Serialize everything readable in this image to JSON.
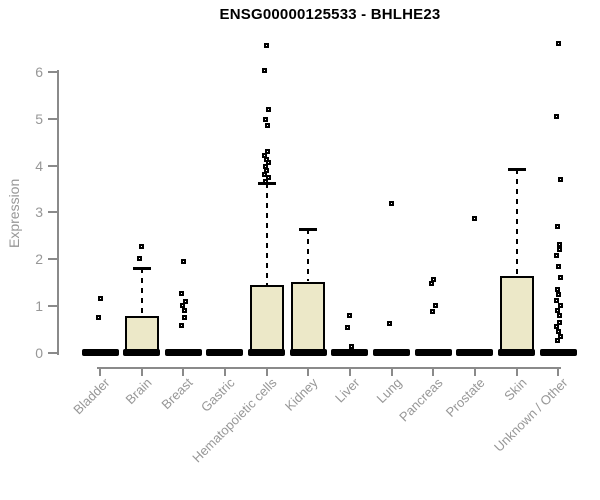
{
  "chart_data": {
    "type": "boxplot",
    "title": "ENSG00000125533 - BHLHE23",
    "xlabel": "",
    "ylabel": "Expression",
    "yticks": [
      0,
      1,
      2,
      3,
      4,
      5,
      6
    ],
    "ylim": [
      0,
      6.7
    ],
    "grid": false,
    "legend": "none",
    "colors": {
      "box_fill": "#ece8c8",
      "box_border": "#000000",
      "axis_line": "#8a8a8a",
      "tick_label": "#979797",
      "title_text": "#000000"
    },
    "categories": [
      "Bladder",
      "Brain",
      "Breast",
      "Gastric",
      "Hematopoietic cells",
      "Kidney",
      "Liver",
      "Lung",
      "Pancreas",
      "Prostate",
      "Skin",
      "Unknown / Other"
    ],
    "series": [
      {
        "category": "Bladder",
        "median": 0,
        "q1": 0,
        "q3": 0,
        "whisker_low": 0,
        "whisker_high": 0,
        "outliers": [
          1.15,
          0.75
        ]
      },
      {
        "category": "Brain",
        "median": 0,
        "q1": 0,
        "q3": 0.78,
        "whisker_low": 0,
        "whisker_high": 1.8,
        "outliers": [
          2.28,
          2.02
        ]
      },
      {
        "category": "Breast",
        "median": 0,
        "q1": 0,
        "q3": 0,
        "whisker_low": 0,
        "whisker_high": 0,
        "outliers": [
          1.95,
          1.27,
          1.1,
          1.0,
          0.9,
          0.75,
          0.58
        ]
      },
      {
        "category": "Gastric",
        "median": 0,
        "q1": 0,
        "q3": 0,
        "whisker_low": 0,
        "whisker_high": 0,
        "outliers": []
      },
      {
        "category": "Hematopoietic cells",
        "median": 0,
        "q1": 0,
        "q3": 1.45,
        "whisker_low": 0,
        "whisker_high": 3.62,
        "outliers": [
          6.58,
          6.05,
          5.2,
          5.0,
          4.87,
          4.3,
          4.22,
          4.14,
          4.06,
          3.98,
          3.9,
          3.82,
          3.75,
          3.66
        ]
      },
      {
        "category": "Kidney",
        "median": 0,
        "q1": 0,
        "q3": 1.52,
        "whisker_low": 0,
        "whisker_high": 2.65,
        "outliers": []
      },
      {
        "category": "Liver",
        "median": 0,
        "q1": 0,
        "q3": 0,
        "whisker_low": 0,
        "whisker_high": 0,
        "outliers": [
          0.8,
          0.53,
          0.13
        ]
      },
      {
        "category": "Lung",
        "median": 0,
        "q1": 0,
        "q3": 0,
        "whisker_low": 0,
        "whisker_high": 0,
        "outliers": [
          3.2,
          0.63
        ]
      },
      {
        "category": "Pancreas",
        "median": 0,
        "q1": 0,
        "q3": 0,
        "whisker_low": 0,
        "whisker_high": 0,
        "outliers": [
          1.56,
          1.47,
          1.0,
          0.87
        ]
      },
      {
        "category": "Prostate",
        "median": 0,
        "q1": 0,
        "q3": 0,
        "whisker_low": 0,
        "whisker_high": 0,
        "outliers": [
          2.87
        ]
      },
      {
        "category": "Skin",
        "median": 0,
        "q1": 0,
        "q3": 1.64,
        "whisker_low": 0,
        "whisker_high": 3.94,
        "outliers": []
      },
      {
        "category": "Unknown / Other",
        "median": 0,
        "q1": 0,
        "q3": 0,
        "whisker_low": 0,
        "whisker_high": 0,
        "outliers": [
          6.62,
          5.05,
          3.7,
          2.7,
          2.32,
          2.2,
          2.08,
          1.85,
          1.6,
          1.35,
          1.25,
          1.12,
          1.0,
          0.9,
          0.8,
          0.65,
          0.55,
          0.45,
          0.35,
          0.25
        ]
      }
    ]
  }
}
